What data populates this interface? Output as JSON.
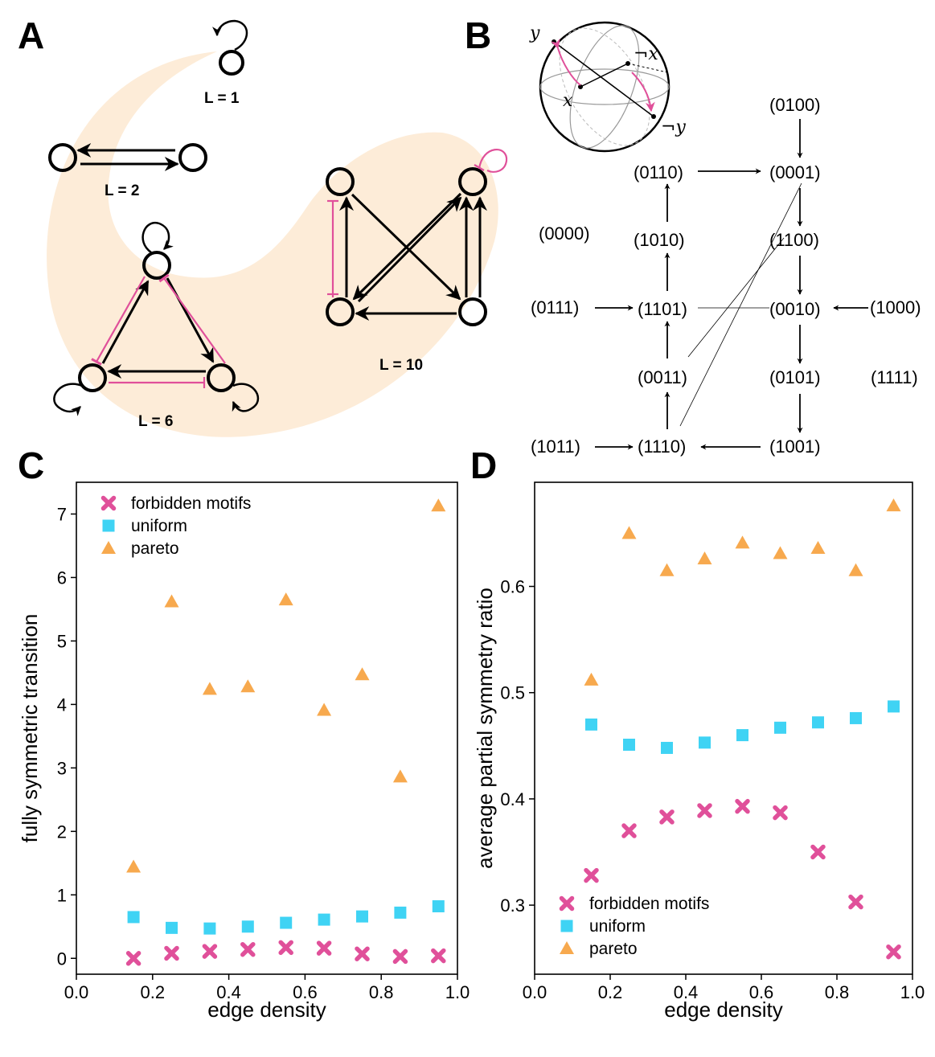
{
  "panel_labels": {
    "a": "A",
    "b": "B",
    "c": "C",
    "d": "D"
  },
  "colors": {
    "forbidden": "#e0509a",
    "uniform": "#3fd3f4",
    "pareto": "#f7a94e",
    "crescent": "#fdecd8",
    "inhibit": "#e0509a"
  },
  "panel_a": {
    "l1": "L = 1",
    "l2": "L = 2",
    "l6": "L = 6",
    "l10": "L = 10"
  },
  "panel_b": {
    "sphere_labels": {
      "y": "y",
      "not_y": "¬y",
      "x": "x",
      "not_x": "¬x"
    },
    "states": {
      "s0100": "(0100)",
      "s0110": "(0110)",
      "s0001": "(0001)",
      "s0000": "(0000)",
      "s1010": "(1010)",
      "s1100": "(1100)",
      "s0111": "(0111)",
      "s1101": "(1101)",
      "s0010": "(0010)",
      "s1000": "(1000)",
      "s0011": "(0011)",
      "s0101": "(0101)",
      "s1111": "(1111)",
      "s1011": "(1011)",
      "s1110": "(1110)",
      "s1001": "(1001)"
    }
  },
  "chart_data": [
    {
      "id": "C",
      "type": "scatter",
      "xlabel": "edge density",
      "ylabel": "fully symmetric transition",
      "xlim": [
        0.0,
        1.0
      ],
      "ylim": [
        -0.25,
        7.5
      ],
      "xticks": [
        "0.0",
        "0.2",
        "0.4",
        "0.6",
        "0.8",
        "1.0"
      ],
      "yticks": [
        "0",
        "1",
        "2",
        "3",
        "4",
        "5",
        "6",
        "7"
      ],
      "legend_position": "top-left",
      "x": [
        0.15,
        0.25,
        0.35,
        0.45,
        0.55,
        0.65,
        0.75,
        0.85,
        0.95
      ],
      "series": [
        {
          "name": "forbidden motifs",
          "marker": "x",
          "values": [
            0.0,
            0.08,
            0.11,
            0.14,
            0.17,
            0.16,
            0.07,
            0.03,
            0.04
          ]
        },
        {
          "name": "uniform",
          "marker": "square",
          "values": [
            0.65,
            0.48,
            0.47,
            0.5,
            0.56,
            0.61,
            0.66,
            0.72,
            0.82
          ]
        },
        {
          "name": "pareto",
          "marker": "triangle",
          "values": [
            1.44,
            5.62,
            4.24,
            4.28,
            5.65,
            3.91,
            4.47,
            2.86,
            7.13
          ]
        }
      ]
    },
    {
      "id": "D",
      "type": "scatter",
      "xlabel": "edge density",
      "ylabel": "average partial symmetry ratio",
      "xlim": [
        0.0,
        1.0
      ],
      "ylim": [
        0.235,
        0.698
      ],
      "xticks": [
        "0.0",
        "0.2",
        "0.4",
        "0.6",
        "0.8",
        "1.0"
      ],
      "yticks": [
        "0.3",
        "0.4",
        "0.5",
        "0.6"
      ],
      "legend_position": "bottom-left",
      "x": [
        0.15,
        0.25,
        0.35,
        0.45,
        0.55,
        0.65,
        0.75,
        0.85,
        0.95
      ],
      "series": [
        {
          "name": "forbidden motifs",
          "marker": "x",
          "values": [
            0.328,
            0.37,
            0.383,
            0.389,
            0.393,
            0.387,
            0.35,
            0.303,
            0.256
          ]
        },
        {
          "name": "uniform",
          "marker": "square",
          "values": [
            0.47,
            0.451,
            0.448,
            0.453,
            0.46,
            0.467,
            0.472,
            0.476,
            0.487
          ]
        },
        {
          "name": "pareto",
          "marker": "triangle",
          "values": [
            0.512,
            0.65,
            0.615,
            0.626,
            0.641,
            0.631,
            0.636,
            0.615,
            0.676
          ]
        }
      ]
    }
  ]
}
